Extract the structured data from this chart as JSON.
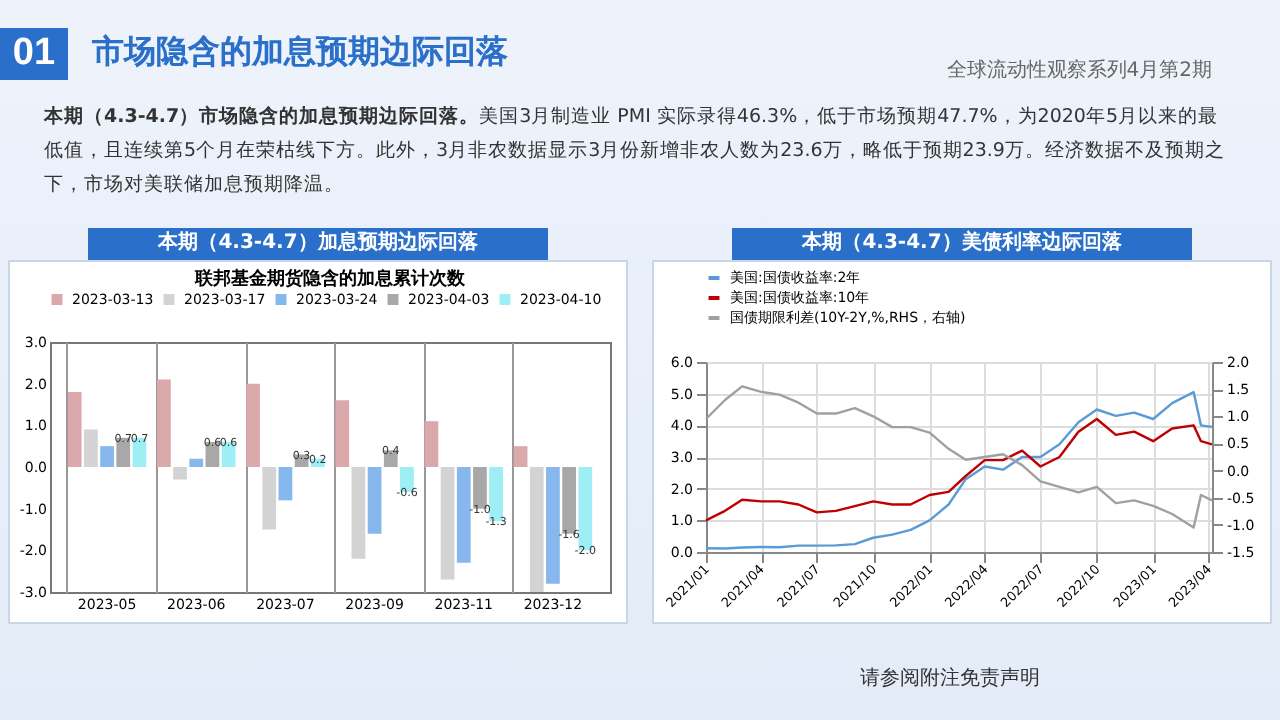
{
  "chart_data": [
    {
      "type": "other",
      "title": "市场隐含的加息预期边际回落",
      "subtitle": "全球流动性观察系列4月第2期",
      "annotations": [
        "01",
        "本期（4.3-4.7）市场隐含的加息预期边际回落。",
        "美国3月制造业 PMI 实际录得46.3%，低于市场预期47.7%，为2020年5月以来的最低值，且连续第5个月在荣枯线下方。此外，3月非农数据显示3月份新增非农人数为23.6万，略低于预期23.9万。经济数据不及预期之下，市场对美联储加息预期降温。",
        "请参阅附注免责声明"
      ]
    },
    {
      "type": "bar",
      "title": "本期（4.3-4.7）加息预期边际回落",
      "subtitle": "联邦基金期货隐含的加息累计次数",
      "categories": [
        "2023-05",
        "2023-06",
        "2023-07",
        "2023-09",
        "2023-11",
        "2023-12"
      ],
      "series": [
        {
          "name": "2023-03-13",
          "color": "#dba8ab",
          "values": [
            1.8,
            2.1,
            2.0,
            1.6,
            1.1,
            0.5
          ]
        },
        {
          "name": "2023-03-17",
          "color": "#d3d3d3",
          "values": [
            0.9,
            -0.3,
            -1.5,
            -2.2,
            -2.7,
            -3.0
          ]
        },
        {
          "name": "2023-03-24",
          "color": "#86b8ee",
          "values": [
            0.5,
            0.2,
            -0.8,
            -1.6,
            -2.3,
            -2.8
          ]
        },
        {
          "name": "2023-04-03",
          "color": "#a8a8a8",
          "values": [
            0.7,
            0.6,
            0.3,
            0.4,
            -1.0,
            -1.6
          ],
          "value_labels": [
            "0.7",
            "0.6",
            "0.3",
            "0.4",
            "-1.0",
            "-1.6"
          ]
        },
        {
          "name": "2023-04-10",
          "color": "#9eeef6",
          "values": [
            0.7,
            0.6,
            0.2,
            -0.6,
            -1.3,
            -2.0
          ],
          "value_labels": [
            "0.7",
            "0.6",
            "0.2",
            "-0.6",
            "-1.3",
            "-2.0"
          ]
        }
      ],
      "ylim": [
        -3,
        3
      ],
      "yticks": [
        {
          "value": -3,
          "label": "-3.0"
        },
        {
          "value": -2,
          "label": "-2.0"
        },
        {
          "value": -1,
          "label": "-1.0"
        },
        {
          "value": 0,
          "label": "0.0"
        },
        {
          "value": 1,
          "label": "1.0"
        },
        {
          "value": 2,
          "label": "2.0"
        },
        {
          "value": 3,
          "label": "3.0"
        }
      ],
      "legend": "top"
    },
    {
      "type": "line",
      "title": "本期（4.3-4.7）美债利率边际回落",
      "x": [
        "2021-01",
        "2021-02",
        "2021-03",
        "2021-04",
        "2021-05",
        "2021-06",
        "2021-07",
        "2021-08",
        "2021-09",
        "2021-10",
        "2021-11",
        "2021-12",
        "2022-01",
        "2022-02",
        "2022-03",
        "2022-04",
        "2022-05",
        "2022-06",
        "2022-07",
        "2022-08",
        "2022-09",
        "2022-10",
        "2022-11",
        "2022-12",
        "2023-01",
        "2023-02",
        "2023-03-08",
        "2023-03-20",
        "2023-04-07"
      ],
      "series": [
        {
          "name": "美国:国债收益率:2年",
          "color": "#5b9bd5",
          "values": [
            0.12,
            0.11,
            0.14,
            0.16,
            0.15,
            0.2,
            0.2,
            0.21,
            0.25,
            0.45,
            0.55,
            0.7,
            1.0,
            1.5,
            2.3,
            2.7,
            2.6,
            3.0,
            3.0,
            3.4,
            4.1,
            4.5,
            4.3,
            4.4,
            4.2,
            4.7,
            5.05,
            4.0,
            3.95
          ]
        },
        {
          "name": "美国:国债收益率:10年",
          "color": "#c00000",
          "values": [
            1.0,
            1.3,
            1.65,
            1.6,
            1.6,
            1.5,
            1.25,
            1.3,
            1.45,
            1.6,
            1.5,
            1.5,
            1.8,
            1.9,
            2.4,
            2.9,
            2.9,
            3.2,
            2.7,
            3.0,
            3.8,
            4.2,
            3.7,
            3.8,
            3.5,
            3.9,
            4.0,
            3.5,
            3.4
          ]
        },
        {
          "name": "国债期限利差(10Y-2Y,%,RHS，右轴)",
          "color": "#a0a0a0",
          "axis": "y2",
          "values": [
            0.95,
            1.3,
            1.55,
            1.45,
            1.4,
            1.25,
            1.05,
            1.05,
            1.15,
            1.0,
            0.8,
            0.8,
            0.7,
            0.4,
            0.2,
            0.25,
            0.3,
            0.1,
            -0.2,
            -0.3,
            -0.4,
            -0.3,
            -0.6,
            -0.55,
            -0.65,
            -0.8,
            -1.05,
            -0.45,
            -0.55
          ]
        }
      ],
      "xlim": [
        "2021-01",
        "2023-04-07"
      ],
      "xticks": [
        {
          "value": "2021-01",
          "label": "2021/01"
        },
        {
          "value": "2021-04",
          "label": "2021/04"
        },
        {
          "value": "2021-07",
          "label": "2021/07"
        },
        {
          "value": "2021-10",
          "label": "2021/10"
        },
        {
          "value": "2022-01",
          "label": "2022/01"
        },
        {
          "value": "2022-04",
          "label": "2022/04"
        },
        {
          "value": "2022-07",
          "label": "2022/07"
        },
        {
          "value": "2022-10",
          "label": "2022/10"
        },
        {
          "value": "2023-01",
          "label": "2023/01"
        },
        {
          "value": "2023-04",
          "label": "2023/04"
        }
      ],
      "ylim": [
        0,
        6
      ],
      "yticks": [
        {
          "value": 0,
          "label": "0.0"
        },
        {
          "value": 1,
          "label": "1.0"
        },
        {
          "value": 2,
          "label": "2.0"
        },
        {
          "value": 3,
          "label": "3.0"
        },
        {
          "value": 4,
          "label": "4.0"
        },
        {
          "value": 5,
          "label": "5.0"
        },
        {
          "value": 6,
          "label": "6.0"
        }
      ],
      "y2lim": [
        -1.5,
        2
      ],
      "y2ticks": [
        {
          "value": -1.5,
          "label": "-1.5"
        },
        {
          "value": -1,
          "label": "-1.0"
        },
        {
          "value": -0.5,
          "label": "-0.5"
        },
        {
          "value": 0,
          "label": "0.0"
        },
        {
          "value": 0.5,
          "label": "0.5"
        },
        {
          "value": 1,
          "label": "1.0"
        },
        {
          "value": 1.5,
          "label": "1.5"
        },
        {
          "value": 2,
          "label": "2.0"
        }
      ],
      "grid": true,
      "legend": "top"
    }
  ]
}
